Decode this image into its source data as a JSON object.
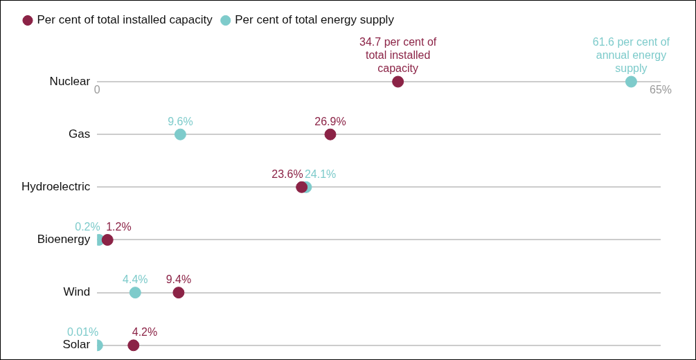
{
  "chart_data": {
    "type": "scatter",
    "orientation": "horizontal",
    "categories": [
      "Nuclear",
      "Gas",
      "Hydroelectric",
      "Bioenergy",
      "Wind",
      "Solar"
    ],
    "series": [
      {
        "name": "Per cent of total installed capacity",
        "color": "#8b2346",
        "values": [
          34.7,
          26.9,
          23.6,
          1.2,
          9.4,
          4.2
        ],
        "value_labels": [
          "34.7 per cent of total installed capacity",
          "26.9%",
          "23.6%",
          "1.2%",
          "9.4%",
          "4.2%"
        ]
      },
      {
        "name": "Per cent of total energy supply",
        "color": "#7ecbcb",
        "values": [
          61.6,
          9.6,
          24.1,
          0.2,
          4.4,
          0.01
        ],
        "value_labels": [
          "61.6 per cent of annual energy supply",
          "9.6%",
          "24.1%",
          "0.2%",
          "4.4%",
          "0.01%"
        ]
      }
    ],
    "xlim": [
      0,
      65
    ],
    "xticks": [
      0,
      {
        "value": 65,
        "label": "65%"
      }
    ],
    "grid": "y",
    "legend": "top left",
    "marker": "circle"
  }
}
